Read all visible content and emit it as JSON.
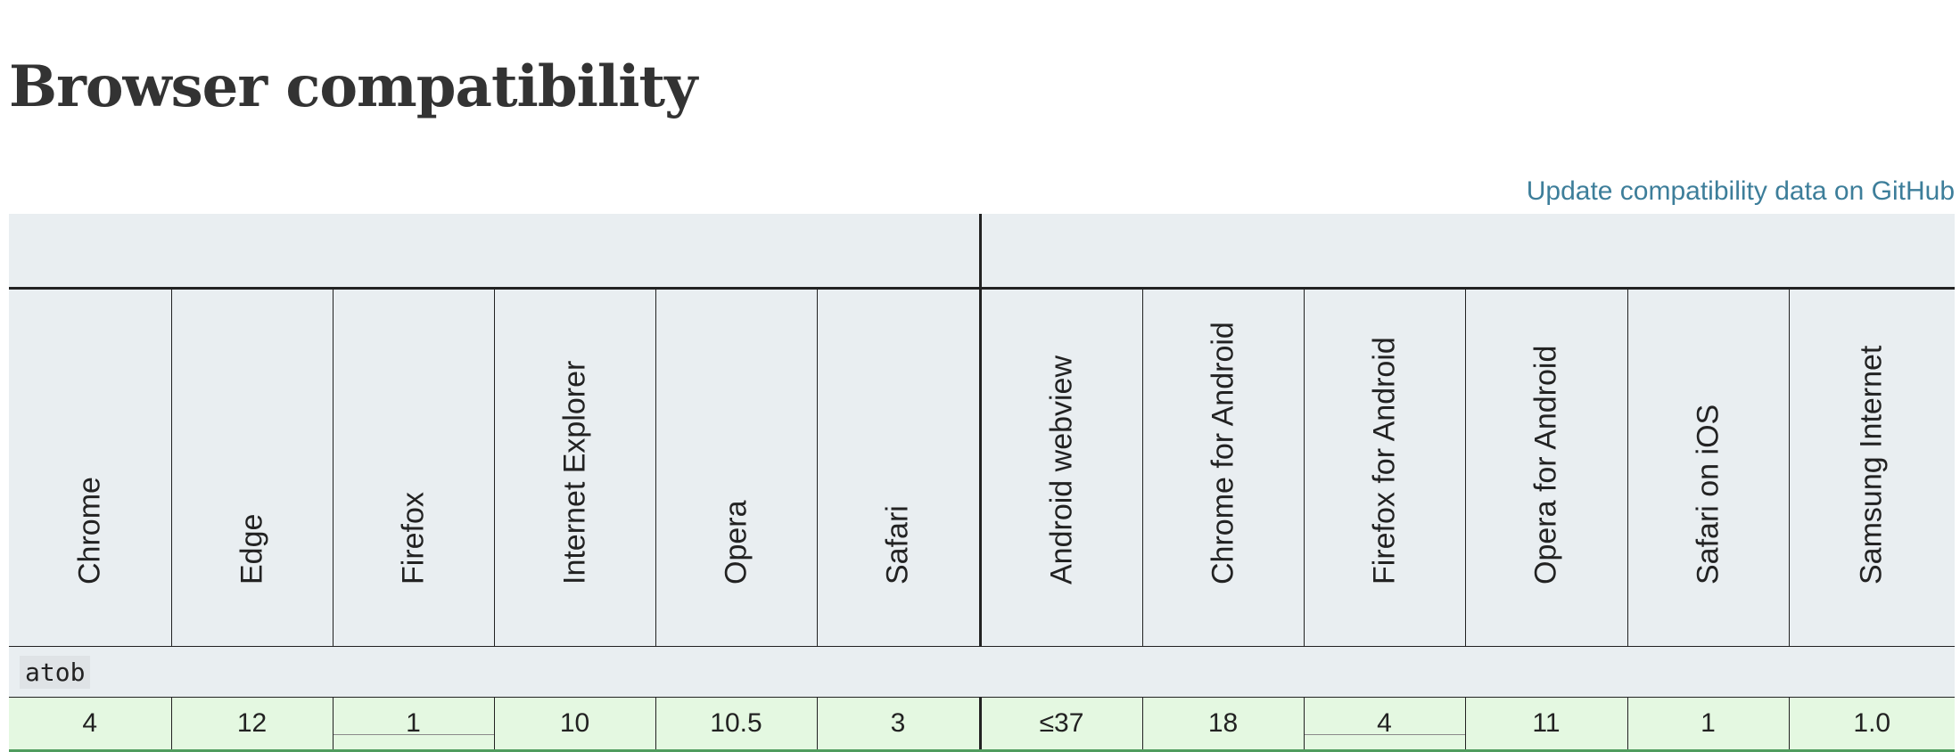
{
  "heading": "Browser compatibility",
  "update_link": "Update compatibility data on GitHub",
  "browsers": {
    "desktop": [
      "Chrome",
      "Edge",
      "Firefox",
      "Internet Explorer",
      "Opera",
      "Safari"
    ],
    "mobile": [
      "Android webview",
      "Chrome for Android",
      "Firefox for Android",
      "Opera for Android",
      "Safari on iOS",
      "Samsung Internet"
    ]
  },
  "feature": {
    "name": "atob",
    "support": {
      "desktop": [
        "4",
        "12",
        "1",
        "10",
        "10.5",
        "3"
      ],
      "mobile": [
        "≤37",
        "18",
        "4",
        "11",
        "1",
        "1.0"
      ]
    }
  },
  "colors": {
    "header_bg": "#e9eef1",
    "supported_bg": "#e4f8e1",
    "supported_border": "#4f9c5e",
    "link": "#3d7e9a"
  }
}
